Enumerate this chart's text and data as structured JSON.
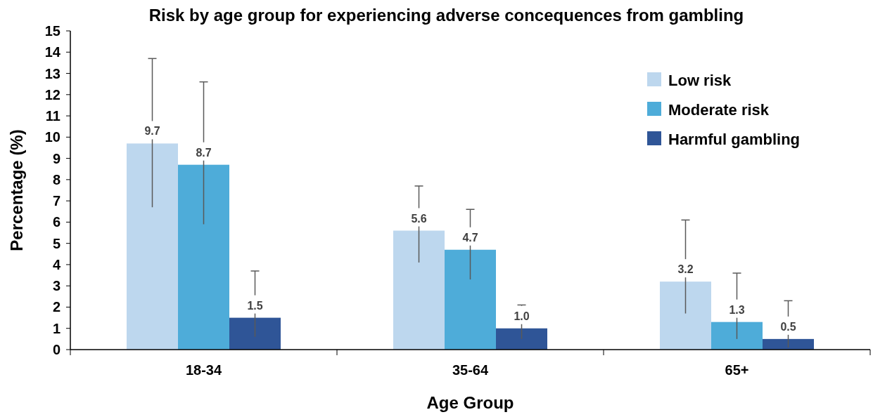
{
  "chart_data": {
    "type": "bar",
    "title": "Risk by age group for experiencing adverse concequences from gambling",
    "xlabel": "Age Group",
    "ylabel": "Percentage (%)",
    "categories": [
      "18-34",
      "35-64",
      "65+"
    ],
    "series": [
      {
        "name": "Low risk",
        "color": "#bdd7ee",
        "values": [
          9.7,
          5.6,
          3.2
        ],
        "value_labels": [
          "9.7",
          "5.6",
          "3.2"
        ],
        "errors": [
          [
            6.7,
            13.7
          ],
          [
            4.1,
            7.7
          ],
          [
            1.7,
            6.1
          ]
        ]
      },
      {
        "name": "Moderate risk",
        "color": "#4eacd9",
        "values": [
          8.7,
          4.7,
          1.3
        ],
        "value_labels": [
          "8.7",
          "4.7",
          "1.3"
        ],
        "errors": [
          [
            5.9,
            12.6
          ],
          [
            3.3,
            6.6
          ],
          [
            0.5,
            3.6
          ]
        ]
      },
      {
        "name": "Harmful gambling",
        "color": "#2f5597",
        "values": [
          1.5,
          1.0,
          0.5
        ],
        "value_labels": [
          "1.5",
          "1.0",
          "0.5"
        ],
        "errors": [
          [
            0.6,
            3.7
          ],
          [
            0.5,
            2.1
          ],
          [
            0.1,
            2.3
          ]
        ]
      }
    ],
    "ylim": [
      0,
      15
    ],
    "yticks": [
      0,
      1,
      2,
      3,
      4,
      5,
      6,
      7,
      8,
      9,
      10,
      11,
      12,
      13,
      14,
      15
    ],
    "legend": "top right",
    "grid": false
  }
}
